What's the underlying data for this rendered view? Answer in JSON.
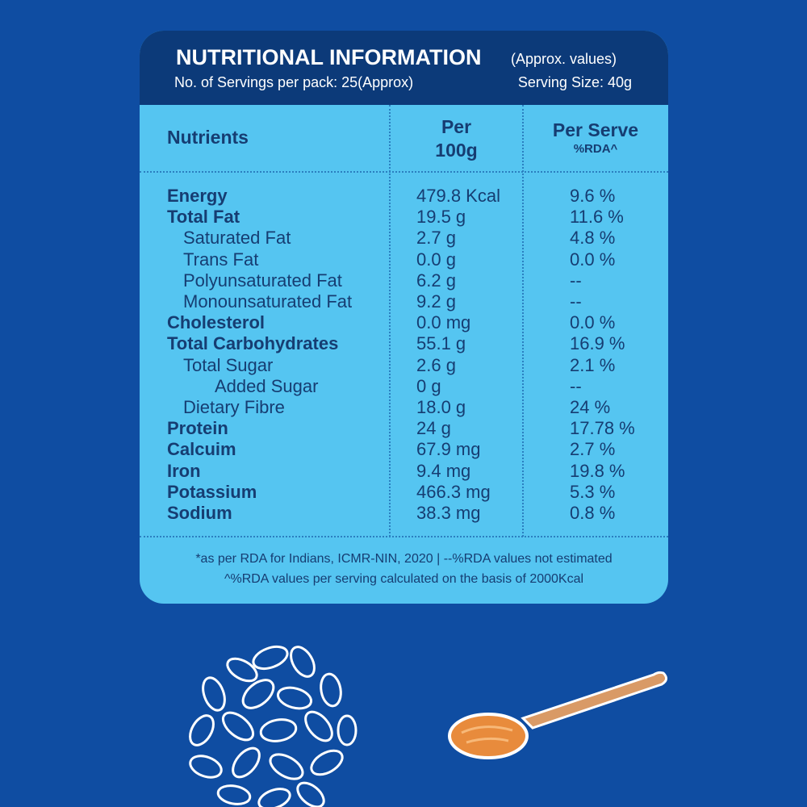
{
  "header": {
    "title": "NUTRITIONAL INFORMATION",
    "note": "(Approx. values)",
    "servings": "No. of Servings per pack: 25(Approx)",
    "serving_size": "Serving Size: 40g"
  },
  "table": {
    "columns": [
      {
        "line1": "Nutrients"
      },
      {
        "line1": "Per",
        "line2": "100g"
      },
      {
        "line1": "Per Serve",
        "line2": "%RDA^"
      }
    ],
    "rows": [
      [
        "Energy",
        "479.8 Kcal",
        "9.6 %"
      ],
      [
        "Total Fat",
        "19.5 g",
        "11.6 %"
      ],
      [
        "Saturated Fat",
        "2.7 g",
        "4.8 %"
      ],
      [
        "Trans Fat",
        "0.0 g",
        "0.0 %"
      ],
      [
        "Polyunsaturated Fat",
        "6.2 g",
        "--"
      ],
      [
        "Monounsaturated Fat",
        "9.2 g",
        "--"
      ],
      [
        "Cholesterol",
        "0.0 mg",
        "0.0 %"
      ],
      [
        "Total Carbohydrates",
        "55.1 g",
        "16.9 %"
      ],
      [
        "Total Sugar",
        "2.6 g",
        "2.1 %"
      ],
      [
        "Added Sugar",
        "0 g",
        "--"
      ],
      [
        "Dietary Fibre",
        "18.0 g",
        "24 %"
      ],
      [
        "Protein",
        "24 g",
        "17.78 %"
      ],
      [
        "Calcuim",
        "67.9 mg",
        "2.7 %"
      ],
      [
        "Iron",
        "9.4 mg",
        "19.8 %"
      ],
      [
        "Potassium",
        "466.3 mg",
        "5.3 %"
      ],
      [
        "Sodium",
        "38.3 mg",
        "0.8 %"
      ]
    ]
  },
  "footnotes": [
    "*as per RDA for Indians, ICMR-NIN, 2020  |  --%RDA values not estimated",
    "^%RDA values per serving calculated on the basis of 2000Kcal"
  ]
}
